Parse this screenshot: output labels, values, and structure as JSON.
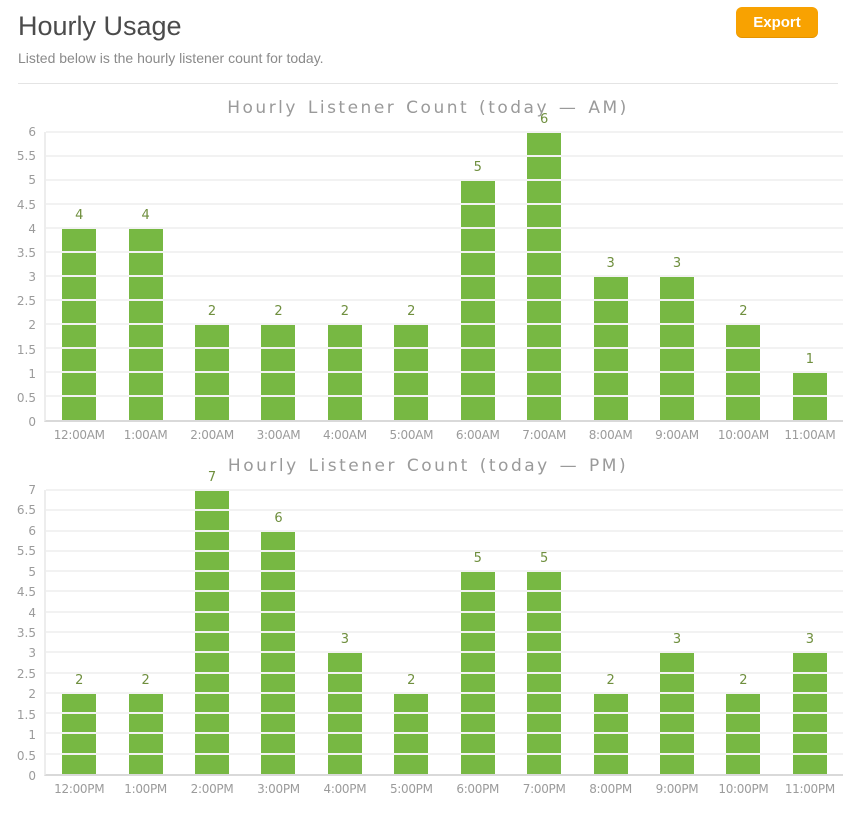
{
  "page": {
    "title": "Hourly Usage",
    "subtitle": "Listed below is the hourly listener count for today.",
    "export_label": "Export"
  },
  "colors": {
    "bar_green": "#77b843",
    "bar_value_label": "#6f8f3e",
    "export_orange": "#f8a201",
    "chart_text_gray": "#9a9a9a",
    "grid_line": "#f2f2f2"
  },
  "chart_data": [
    {
      "type": "bar",
      "title": "Hourly Listener Count (today — AM)",
      "categories": [
        "12:00AM",
        "1:00AM",
        "2:00AM",
        "3:00AM",
        "4:00AM",
        "5:00AM",
        "6:00AM",
        "7:00AM",
        "8:00AM",
        "9:00AM",
        "10:00AM",
        "11:00AM"
      ],
      "values": [
        4,
        4,
        2,
        2,
        2,
        2,
        5,
        6,
        3,
        3,
        2,
        1
      ],
      "xlabel": "",
      "ylabel": "",
      "ylim": [
        0,
        6
      ],
      "ytick_step": 0.5,
      "grid": true,
      "legend": false
    },
    {
      "type": "bar",
      "title": "Hourly Listener Count (today — PM)",
      "categories": [
        "12:00PM",
        "1:00PM",
        "2:00PM",
        "3:00PM",
        "4:00PM",
        "5:00PM",
        "6:00PM",
        "7:00PM",
        "8:00PM",
        "9:00PM",
        "10:00PM",
        "11:00PM"
      ],
      "values": [
        2,
        2,
        7,
        6,
        3,
        2,
        5,
        5,
        2,
        3,
        2,
        3
      ],
      "xlabel": "",
      "ylabel": "",
      "ylim": [
        0,
        7
      ],
      "ytick_step": 0.5,
      "grid": true,
      "legend": false
    }
  ]
}
